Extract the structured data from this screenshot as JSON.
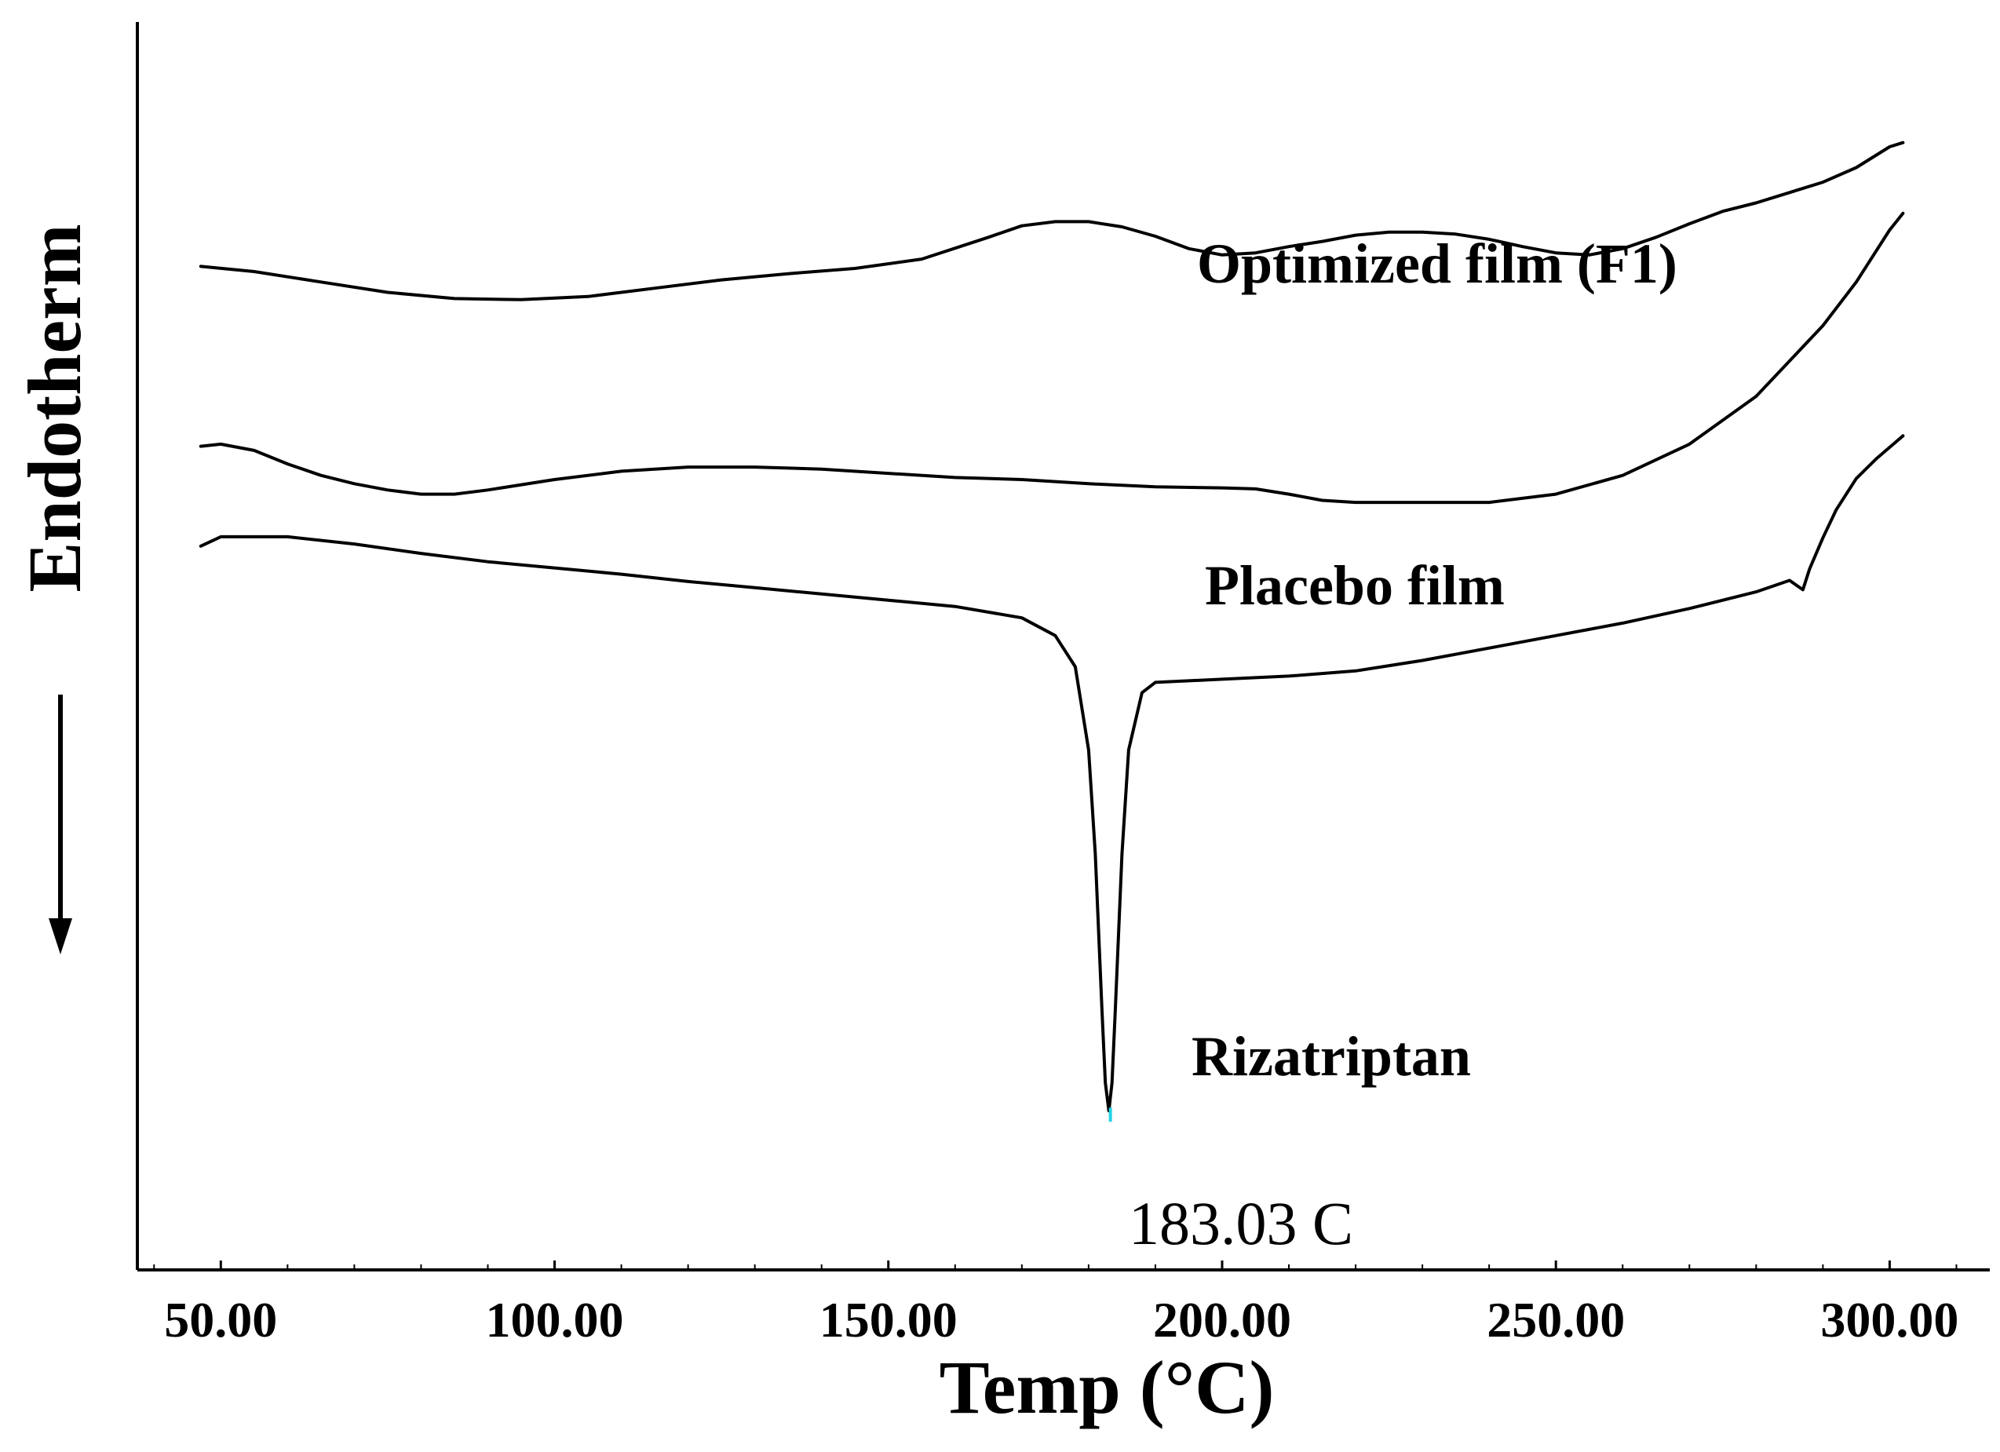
{
  "chart_data": {
    "type": "line",
    "title": "",
    "xlabel": "Temp (°C)",
    "ylabel": "Endotherm",
    "xlim": [
      37.5,
      315
    ],
    "x_ticks": [
      "50.00",
      "100.00",
      "150.00",
      "200.00",
      "250.00",
      "300.00"
    ],
    "x_tick_values": [
      50,
      100,
      150,
      200,
      250,
      300
    ],
    "y_axis_note": "arbitrary heat flow units, curves vertically offset; endotherm direction downward",
    "ylim": [
      -10,
      110
    ],
    "series": [
      {
        "name": "Optimized film (F1)",
        "x": [
          47,
          55,
          65,
          75,
          85,
          95,
          105,
          115,
          125,
          135,
          145,
          155,
          165,
          170,
          175,
          180,
          185,
          190,
          195,
          200,
          205,
          210,
          215,
          220,
          225,
          230,
          235,
          240,
          245,
          250,
          255,
          260,
          265,
          270,
          275,
          280,
          285,
          290,
          295,
          300,
          302
        ],
        "y": [
          86.5,
          86,
          85,
          84,
          83.4,
          83.3,
          83.6,
          84.4,
          85.2,
          85.8,
          86.3,
          87.2,
          89.3,
          90.4,
          90.8,
          90.8,
          90.3,
          89.4,
          88.2,
          87.6,
          87.8,
          88.4,
          88.9,
          89.5,
          89.8,
          89.8,
          89.6,
          89.1,
          88.4,
          87.8,
          87.6,
          88.2,
          89.3,
          90.6,
          91.8,
          92.6,
          93.6,
          94.6,
          96,
          98,
          98.4
        ]
      },
      {
        "name": "Placebo film",
        "x": [
          47,
          50,
          55,
          60,
          65,
          70,
          75,
          80,
          85,
          90,
          100,
          110,
          120,
          130,
          140,
          150,
          160,
          170,
          180,
          190,
          200,
          205,
          210,
          215,
          220,
          230,
          240,
          250,
          260,
          270,
          280,
          290,
          295,
          300,
          302
        ],
        "y": [
          69.2,
          69.4,
          68.8,
          67.5,
          66.4,
          65.6,
          65,
          64.6,
          64.6,
          65,
          66,
          66.8,
          67.2,
          67.2,
          67,
          66.6,
          66.2,
          66,
          65.6,
          65.3,
          65.2,
          65.1,
          64.6,
          64,
          63.8,
          63.8,
          63.8,
          64.6,
          66.4,
          69.4,
          74,
          80.8,
          85,
          90,
          91.6
        ]
      },
      {
        "name": "Rizatriptan",
        "peak_label": "183.03 C",
        "x": [
          47,
          50,
          60,
          70,
          80,
          90,
          100,
          110,
          120,
          130,
          140,
          150,
          160,
          170,
          175,
          178,
          180,
          181,
          182,
          182.5,
          183.03,
          183.5,
          184,
          185,
          186,
          188,
          190,
          200,
          210,
          220,
          230,
          240,
          250,
          260,
          270,
          280,
          285,
          287,
          288,
          290,
          292,
          295,
          298,
          302
        ],
        "y": [
          59.6,
          60.5,
          60.5,
          59.8,
          58.9,
          58.1,
          57.5,
          56.9,
          56.2,
          55.6,
          55,
          54.4,
          53.8,
          52.7,
          51,
          48,
          40,
          30,
          15,
          8,
          5.3,
          8,
          15,
          30,
          40,
          45.5,
          46.5,
          46.8,
          47.1,
          47.6,
          48.6,
          49.8,
          51,
          52.2,
          53.6,
          55.2,
          56.3,
          55.4,
          57.4,
          60.4,
          63.1,
          66.1,
          68,
          70.2
        ]
      }
    ]
  },
  "labels": {
    "optimized": "Optimized film (F1)",
    "placebo": "Placebo film",
    "rizatriptan": "Rizatriptan",
    "peak": "183.03 C"
  }
}
